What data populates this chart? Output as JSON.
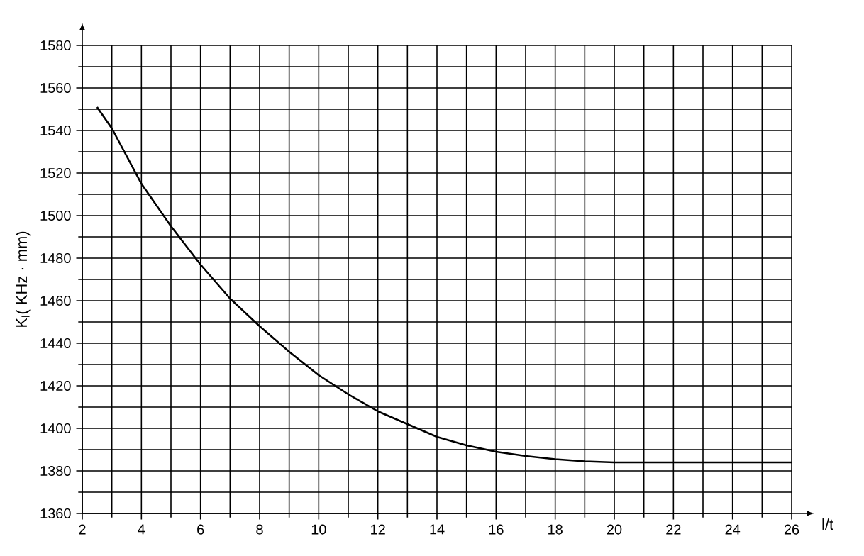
{
  "chart_data": {
    "type": "line",
    "xlabel": "l/t",
    "ylabel": "K$_{l}$( KHz · mm)",
    "x": [
      2.5,
      3,
      4,
      5,
      6,
      7,
      8,
      9,
      10,
      11,
      12,
      13,
      14,
      15,
      16,
      17,
      18,
      19,
      20,
      22,
      24,
      26
    ],
    "series": [
      {
        "color": "#000000",
        "values": [
          1551,
          1541,
          1515,
          1495,
          1477,
          1461,
          1448,
          1436,
          1425,
          1416,
          1408,
          1402,
          1396,
          1392,
          1389,
          1387,
          1385.5,
          1384.5,
          1384,
          1384,
          1384,
          1384
        ]
      }
    ],
    "xlim": [
      2,
      26
    ],
    "ylim": [
      1360,
      1580
    ],
    "xticks": [
      2,
      4,
      6,
      8,
      10,
      12,
      14,
      16,
      18,
      20,
      22,
      24,
      26
    ],
    "yticks": [
      1360,
      1380,
      1400,
      1420,
      1440,
      1460,
      1480,
      1500,
      1520,
      1540,
      1560,
      1580
    ],
    "grid": true,
    "marker": "none",
    "line_style": "solid"
  }
}
